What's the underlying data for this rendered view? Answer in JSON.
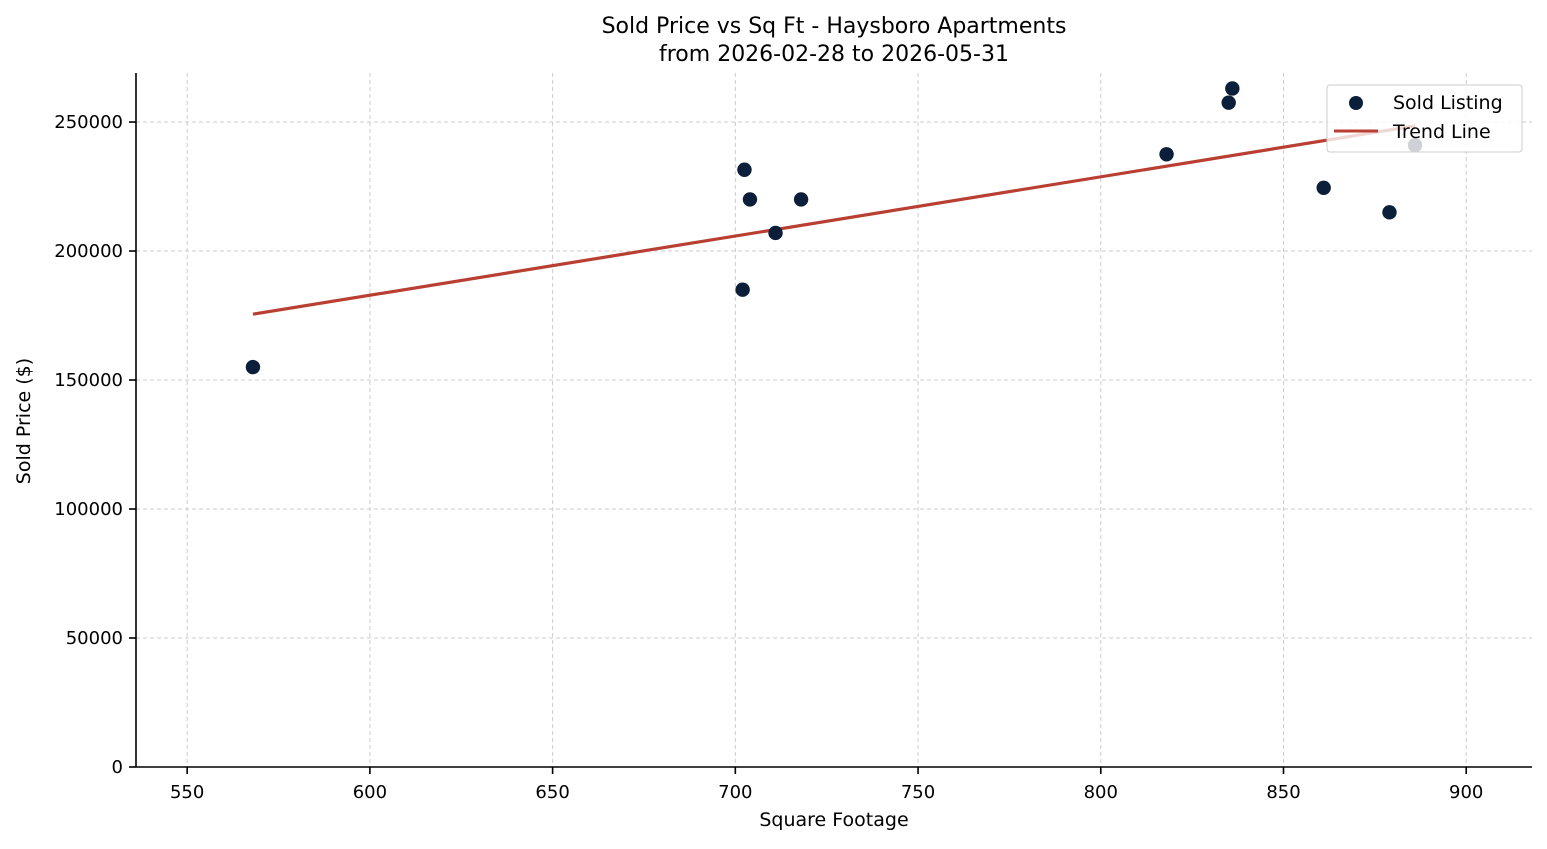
{
  "chart_data": {
    "type": "scatter",
    "title": "Sold Price vs Sq Ft - Haysboro Apartments",
    "subtitle": "from 2026-02-28 to 2026-05-31",
    "xlabel": "Square Footage",
    "ylabel": "Sold Price ($)",
    "xlim": [
      536,
      918
    ],
    "ylim": [
      0,
      269000
    ],
    "xticks": [
      550,
      600,
      650,
      700,
      750,
      800,
      850,
      900
    ],
    "yticks": [
      0,
      50000,
      100000,
      150000,
      200000,
      250000
    ],
    "grid": true,
    "legend_position": "top-right",
    "series": [
      {
        "name": "Sold Listing",
        "kind": "scatter",
        "color": "#0b1f3a",
        "points": [
          {
            "x": 568,
            "y": 155000
          },
          {
            "x": 702,
            "y": 185000
          },
          {
            "x": 702.5,
            "y": 231500
          },
          {
            "x": 704,
            "y": 220000
          },
          {
            "x": 711,
            "y": 207000
          },
          {
            "x": 718,
            "y": 220000
          },
          {
            "x": 818,
            "y": 237500
          },
          {
            "x": 835,
            "y": 257500
          },
          {
            "x": 836,
            "y": 263000
          },
          {
            "x": 861,
            "y": 224500
          },
          {
            "x": 879,
            "y": 215000
          },
          {
            "x": 886,
            "y": 241000
          }
        ]
      },
      {
        "name": "Trend Line",
        "kind": "line",
        "color": "#b93f32",
        "points": [
          {
            "x": 568,
            "y": 175500
          },
          {
            "x": 886,
            "y": 248500
          }
        ]
      }
    ]
  }
}
